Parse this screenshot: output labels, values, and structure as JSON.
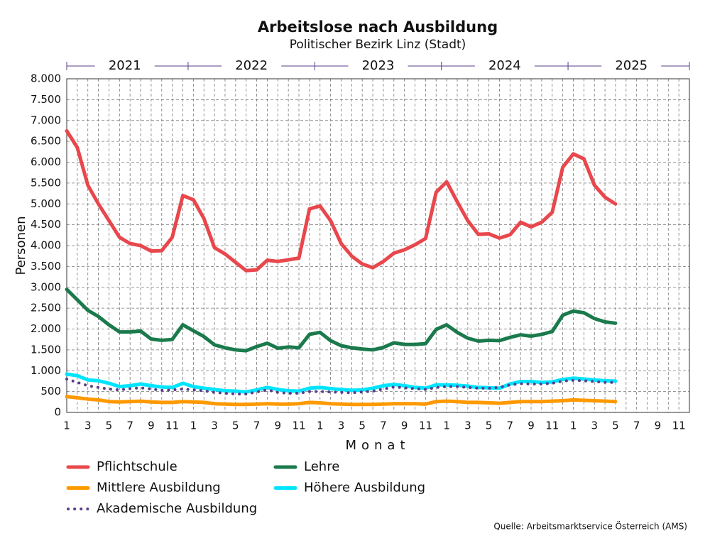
{
  "chart_data": {
    "type": "line",
    "title": "Arbeitslose nach Ausbildung",
    "subtitle": "Politischer Bezirk Linz (Stadt)",
    "ylabel": "Personen",
    "xlabel": "Monat",
    "source": "Quelle: Arbeitsmarktservice Österreich (AMS)",
    "years": [
      "2021",
      "2022",
      "2023",
      "2024",
      "2025"
    ],
    "year_color": "#5a3d8a",
    "categories": [
      "1",
      null,
      "3",
      null,
      "5",
      null,
      "7",
      null,
      "9",
      null,
      "11",
      null,
      "1",
      null,
      "3",
      null,
      "5",
      null,
      "7",
      null,
      "9",
      null,
      "11",
      null,
      "1",
      null,
      "3",
      null,
      "5",
      null,
      "7",
      null,
      "9",
      null,
      "11",
      null,
      "1",
      null,
      "3",
      null,
      "5",
      null,
      "7",
      null,
      "9",
      null,
      "11",
      null,
      "1",
      null,
      "3",
      null,
      "5",
      null,
      "7",
      null,
      "9",
      null,
      "11",
      null
    ],
    "ylim": [
      0,
      8000
    ],
    "yticks": [
      0,
      500,
      {
        "value": 1000,
        "label": "1.000"
      },
      {
        "value": 1500,
        "label": "1.500"
      },
      {
        "value": 2000,
        "label": "2.000"
      },
      {
        "value": 2500,
        "label": "2.500"
      },
      {
        "value": 3000,
        "label": "3.000"
      },
      {
        "value": 3500,
        "label": "3.500"
      },
      {
        "value": 4000,
        "label": "4.000"
      },
      {
        "value": 4500,
        "label": "4.500"
      },
      {
        "value": 5000,
        "label": "5.000"
      },
      {
        "value": 5500,
        "label": "5.500"
      },
      {
        "value": 6000,
        "label": "6.000"
      },
      {
        "value": 6500,
        "label": "6.500"
      },
      {
        "value": 7000,
        "label": "7.000"
      },
      {
        "value": 7500,
        "label": "7.500"
      },
      {
        "value": 8000,
        "label": "8.000"
      }
    ],
    "grid": true,
    "series": [
      {
        "name": "Pflichtschule",
        "color": "#e8474c",
        "dash": "solid",
        "values": [
          6750,
          6350,
          5450,
          5000,
          4600,
          4200,
          4050,
          4000,
          3870,
          3880,
          4200,
          5200,
          5100,
          4650,
          3950,
          3800,
          3600,
          3400,
          3420,
          3650,
          3620,
          3660,
          3700,
          4880,
          4950,
          4600,
          4050,
          3750,
          3560,
          3470,
          3620,
          3820,
          3900,
          4020,
          4170,
          5280,
          5530,
          5050,
          4600,
          4270,
          4280,
          4180,
          4260,
          4560,
          4450,
          4560,
          4800,
          5880,
          6200,
          6080,
          5450,
          5160,
          5000,
          null,
          null,
          null,
          null,
          null,
          null,
          null
        ]
      },
      {
        "name": "Lehre",
        "color": "#1a7a4c",
        "dash": "solid",
        "values": [
          2950,
          2700,
          2450,
          2300,
          2100,
          1930,
          1930,
          1950,
          1760,
          1730,
          1750,
          2100,
          1960,
          1820,
          1620,
          1550,
          1500,
          1480,
          1580,
          1660,
          1540,
          1570,
          1550,
          1870,
          1920,
          1720,
          1600,
          1550,
          1520,
          1500,
          1560,
          1670,
          1630,
          1630,
          1650,
          1990,
          2100,
          1920,
          1780,
          1710,
          1730,
          1720,
          1800,
          1860,
          1830,
          1870,
          1940,
          2330,
          2430,
          2390,
          2250,
          2170,
          2140,
          null,
          null,
          null,
          null,
          null,
          null,
          null
        ]
      },
      {
        "name": "Mittlere Ausbildung",
        "color": "#ff9900",
        "dash": "solid",
        "values": [
          380,
          350,
          320,
          300,
          260,
          250,
          260,
          270,
          250,
          240,
          240,
          260,
          250,
          240,
          210,
          200,
          190,
          190,
          200,
          210,
          200,
          200,
          210,
          240,
          230,
          210,
          200,
          190,
          190,
          190,
          200,
          210,
          210,
          210,
          200,
          260,
          270,
          260,
          240,
          240,
          230,
          220,
          240,
          260,
          260,
          260,
          270,
          280,
          300,
          290,
          280,
          270,
          260,
          null,
          null,
          null,
          null,
          null,
          null,
          null
        ]
      },
      {
        "name": "Höhere Ausbildung",
        "color": "#00e5ff",
        "dash": "solid",
        "values": [
          920,
          880,
          780,
          760,
          700,
          620,
          640,
          680,
          640,
          610,
          600,
          700,
          620,
          580,
          550,
          520,
          510,
          490,
          540,
          600,
          550,
          520,
          510,
          580,
          600,
          570,
          550,
          530,
          540,
          580,
          640,
          670,
          640,
          600,
          580,
          660,
          660,
          650,
          630,
          600,
          590,
          580,
          680,
          740,
          740,
          720,
          730,
          790,
          820,
          800,
          780,
          760,
          750,
          null,
          null,
          null,
          null,
          null,
          null,
          null
        ]
      },
      {
        "name": "Akademische Ausbildung",
        "color": "#5a3d8a",
        "dash": "dotted",
        "values": [
          800,
          720,
          640,
          600,
          560,
          540,
          570,
          590,
          560,
          530,
          540,
          560,
          540,
          520,
          480,
          460,
          440,
          440,
          490,
          540,
          480,
          460,
          460,
          500,
          500,
          490,
          480,
          470,
          490,
          510,
          560,
          610,
          590,
          570,
          550,
          600,
          620,
          620,
          600,
          580,
          580,
          600,
          660,
          690,
          680,
          680,
          700,
          750,
          770,
          760,
          740,
          720,
          720,
          null,
          null,
          null,
          null,
          null,
          null,
          null
        ]
      }
    ]
  }
}
